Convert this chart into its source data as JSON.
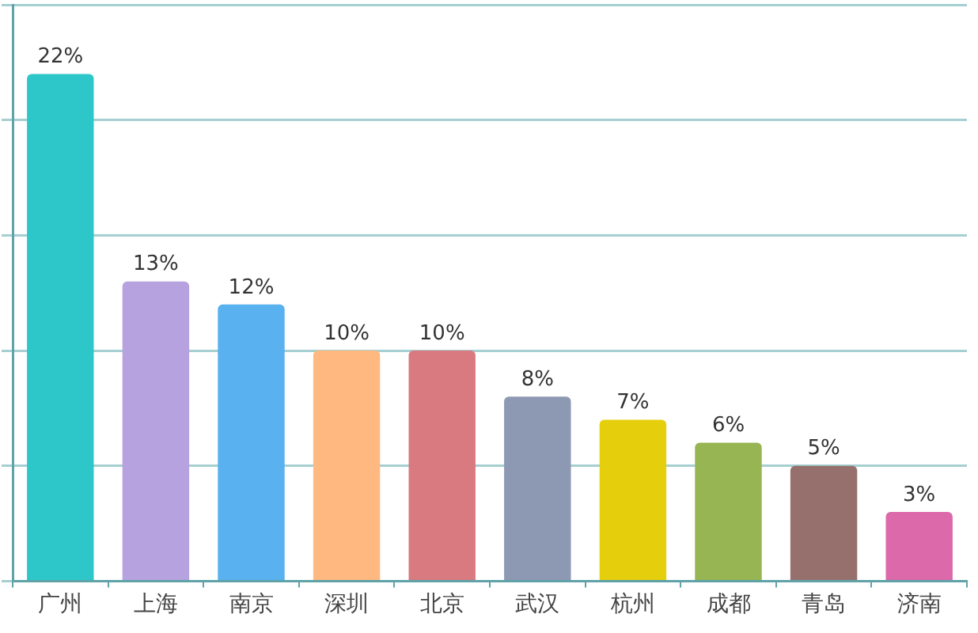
{
  "chart_data": {
    "type": "bar",
    "categories": [
      "广州",
      "上海",
      "南京",
      "深圳",
      "北京",
      "武汉",
      "杭州",
      "成都",
      "青岛",
      "济南"
    ],
    "values": [
      22,
      13,
      12,
      10,
      10,
      8,
      7,
      6,
      5,
      3
    ],
    "colors": [
      "#2ec7c9",
      "#b6a2de",
      "#5ab1ef",
      "#ffb980",
      "#d87a80",
      "#8d98b3",
      "#e5cf0d",
      "#97b552",
      "#95706d",
      "#dc69aa"
    ],
    "value_labels": [
      "22%",
      "13%",
      "12%",
      "10%",
      "10%",
      "8%",
      "7%",
      "6%",
      "5%",
      "3%"
    ],
    "ylim": [
      0,
      25
    ],
    "yticks": [
      {
        "value": 0,
        "label": null
      },
      {
        "value": 5,
        "label": null
      },
      {
        "value": 10,
        "label": null
      },
      {
        "value": 15,
        "label": null
      },
      {
        "value": 20,
        "label": null
      },
      {
        "value": 25,
        "label": null
      }
    ],
    "grid": "y",
    "tick_labels": "x"
  }
}
